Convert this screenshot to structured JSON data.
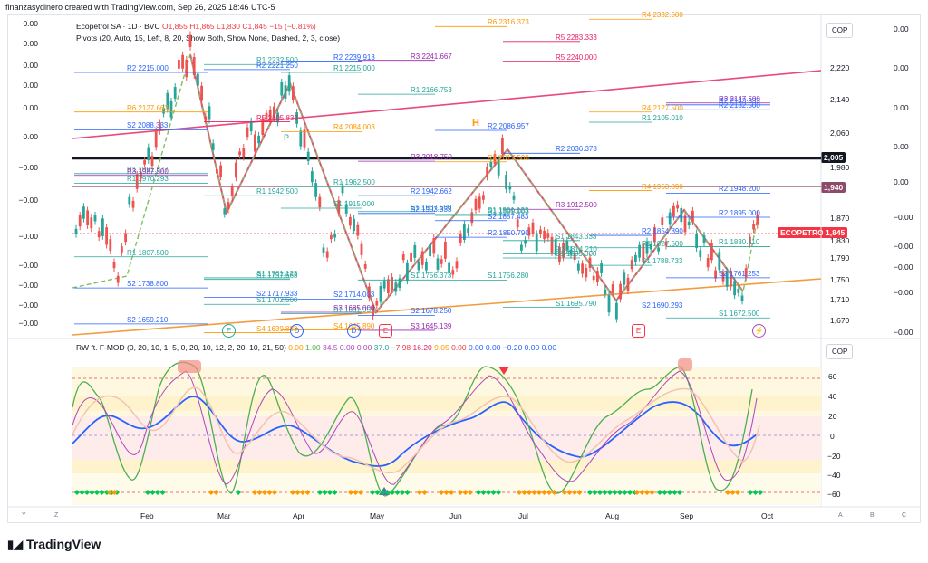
{
  "header": {
    "created": "finanzasydinero created with TradingView.com, Sep 26, 2025 18:46 UTC-5"
  },
  "legend": {
    "symbol": "Ecopetrol SA · 1D · BVC",
    "o": "O1,855",
    "h": "H1,865",
    "l": "L1,830",
    "c": "C1,845",
    "chg": "−15 (−0.81%)",
    "pivots": "Pivots (20, Auto, 15, Left, 8, 20, Show Both, Show None, Dashed, 2, 3, close)"
  },
  "osc_legend": {
    "name": "RW ft. F-MOD (0, 20, 10, 1, 5, 0, 20, 10, 12, 2, 20, 10, 21, 50)",
    "values": [
      "0.00",
      "1.00",
      "34.5",
      "0.00",
      "0.00",
      "37.0",
      "−7.98",
      "16.20",
      "9.05",
      "0.00",
      "0.00",
      "0.00",
      "−0.20",
      "0.00",
      "0.00"
    ]
  },
  "currency": {
    "main": "COP",
    "osc": "COP"
  },
  "price_axis": [
    "2,220",
    "2,140",
    "2,060",
    "1,980",
    "1,870",
    "1,830",
    "1,790",
    "1,750",
    "1,710",
    "1,670"
  ],
  "osc_axis": [
    "60",
    "40",
    "20",
    "0",
    "−20",
    "−40",
    "−60"
  ],
  "price_tags": {
    "level1": "2,005",
    "level2": "1,940",
    "ticker": "ECOPETROL",
    "last": "1,845"
  },
  "left_axis": [
    "0.00",
    "0.00",
    "0.00",
    "0.00",
    "0.00",
    "0.00",
    "−0.00",
    "−0.00",
    "−0.00",
    "−0.00",
    "−0.00",
    "−0.00",
    "−0.00"
  ],
  "right_scale": [
    "0.00",
    "0.00",
    "0.00",
    "0.00",
    "0.00",
    "−0.00",
    "−0.00",
    "−0.00",
    "−0.00",
    "−0.00"
  ],
  "months": [
    "Feb",
    "Mar",
    "Apr",
    "May",
    "Jun",
    "Jul",
    "Aug",
    "Sep",
    "Oct"
  ],
  "event_markers": [
    "E",
    "D",
    "D",
    "E",
    "E"
  ],
  "pivot_labels": [
    {
      "t": "R2",
      "v": "2215.000",
      "c": "#2962ff"
    },
    {
      "t": "R1",
      "v": "2232.500",
      "c": "#26a69a"
    },
    {
      "t": "R2",
      "v": "2239.913",
      "c": "#2962ff"
    },
    {
      "t": "R3",
      "v": "2241.667",
      "c": "#9c27b0"
    },
    {
      "t": "R6",
      "v": "2316.373",
      "c": "#ff9800"
    },
    {
      "t": "R5",
      "v": "2283.333",
      "c": "#e91e63"
    },
    {
      "t": "R4",
      "v": "2332.500",
      "c": "#ff9800"
    },
    {
      "t": "R3",
      "v": "2147.500",
      "c": "#9c27b0"
    },
    {
      "t": "R6",
      "v": "2127.663",
      "c": "#ff9800"
    },
    {
      "t": "R5",
      "v": "2105.833",
      "c": "#e91e63"
    },
    {
      "t": "R4",
      "v": "2084.003",
      "c": "#ff9800"
    },
    {
      "t": "R1",
      "v": "2166.753",
      "c": "#26a69a"
    },
    {
      "t": "R2",
      "v": "2086.957",
      "c": "#2962ff"
    },
    {
      "t": "R2",
      "v": "2036.373",
      "c": "#2962ff"
    },
    {
      "t": "R4",
      "v": "2127.500",
      "c": "#ff9800"
    },
    {
      "t": "R2",
      "v": "2132.500",
      "c": "#2962ff"
    },
    {
      "t": "R1",
      "v": "1991.377",
      "c": "#26a69a"
    },
    {
      "t": "R1",
      "v": "1942.500",
      "c": "#26a69a"
    },
    {
      "t": "R1",
      "v": "1962.500",
      "c": "#26a69a"
    },
    {
      "t": "R2",
      "v": "1942.662",
      "c": "#2962ff"
    },
    {
      "t": "R1",
      "v": "1899.003",
      "c": "#26a69a"
    },
    {
      "t": "R3",
      "v": "1912.500",
      "c": "#9c27b0"
    },
    {
      "t": "R2",
      "v": "1854.890",
      "c": "#2962ff"
    },
    {
      "t": "R1",
      "v": "1830.110",
      "c": "#26a69a"
    },
    {
      "t": "R1",
      "v": "1807.500",
      "c": "#26a69a"
    },
    {
      "t": "S1",
      "v": "1757.663",
      "c": "#26a69a"
    },
    {
      "t": "S2",
      "v": "1714.003",
      "c": "#2962ff"
    },
    {
      "t": "S1",
      "v": "1907.500",
      "c": "#26a69a"
    },
    {
      "t": "S2",
      "v": "1887.483",
      "c": "#2962ff"
    },
    {
      "t": "S1",
      "v": "1805.000",
      "c": "#26a69a"
    },
    {
      "t": "S1",
      "v": "1788.733",
      "c": "#26a69a"
    },
    {
      "t": "S2",
      "v": "1761.253",
      "c": "#2962ff"
    },
    {
      "t": "S2",
      "v": "1738.800",
      "c": "#2962ff"
    },
    {
      "t": "S2",
      "v": "1717.933",
      "c": "#2962ff"
    },
    {
      "t": "S1",
      "v": "1681.957",
      "c": "#26a69a"
    },
    {
      "t": "S1",
      "v": "1756.373",
      "c": "#26a69a"
    },
    {
      "t": "S1",
      "v": "1756.280",
      "c": "#26a69a"
    },
    {
      "t": "S1",
      "v": "1695.790",
      "c": "#26a69a"
    },
    {
      "t": "S2",
      "v": "1690.293",
      "c": "#2962ff"
    },
    {
      "t": "S1",
      "v": "1672.500",
      "c": "#26a69a"
    },
    {
      "t": "S2",
      "v": "1659.210",
      "c": "#2962ff"
    },
    {
      "t": "S1",
      "v": "1702.500",
      "c": "#26a69a"
    },
    {
      "t": "S3",
      "v": "1685.000",
      "c": "#9c27b0"
    },
    {
      "t": "S2",
      "v": "1678.250",
      "c": "#2962ff"
    },
    {
      "t": "R2",
      "v": "1850.790",
      "c": "#2962ff"
    },
    {
      "t": "R1",
      "v": "1814.210",
      "c": "#26a69a"
    },
    {
      "t": "R1",
      "v": "1827.500",
      "c": "#26a69a"
    },
    {
      "t": "R2",
      "v": "1948.200",
      "c": "#2962ff"
    },
    {
      "t": "S2",
      "v": "2088.333",
      "c": "#2962ff"
    },
    {
      "t": "R2",
      "v": "2221.250",
      "c": "#2962ff"
    },
    {
      "t": "R1",
      "v": "2215.000",
      "c": "#26a69a"
    },
    {
      "t": "R3",
      "v": "2018.750",
      "c": "#9c27b0"
    },
    {
      "t": "R4",
      "v": "2017.500",
      "c": "#ff9800"
    },
    {
      "t": "S1",
      "v": "1843.333",
      "c": "#26a69a"
    },
    {
      "t": "R4",
      "v": "1953.890",
      "c": "#ff9800"
    },
    {
      "t": "R2",
      "v": "1895.000",
      "c": "#2962ff"
    },
    {
      "t": "R1",
      "v": "1970.293",
      "c": "#26a69a"
    },
    {
      "t": "S1",
      "v": "1761.123",
      "c": "#26a69a"
    },
    {
      "t": "S1",
      "v": "1915.000",
      "c": "#26a69a"
    },
    {
      "t": "S2",
      "v": "1903.333",
      "c": "#2962ff"
    },
    {
      "t": "S1",
      "v": "1901.123",
      "c": "#26a69a"
    },
    {
      "t": "R5",
      "v": "2240.000",
      "c": "#e91e63"
    },
    {
      "t": "R1",
      "v": "2105.010",
      "c": "#26a69a"
    },
    {
      "t": "R2",
      "v": "2143.333",
      "c": "#2962ff"
    },
    {
      "t": "R3",
      "v": "1987.500",
      "c": "#9c27b0"
    },
    {
      "t": "S4",
      "v": "1639.883",
      "c": "#ff9800"
    },
    {
      "t": "S4",
      "v": "1645.890",
      "c": "#ff9800"
    },
    {
      "t": "S3",
      "v": "1645.139",
      "c": "#9c27b0"
    }
  ],
  "high_marker": "H",
  "pivot_mark": "P",
  "footer": {
    "brand": "TradingView"
  },
  "bottom_axis_letters": [
    "Y",
    "Z",
    "A",
    "B",
    "C"
  ]
}
